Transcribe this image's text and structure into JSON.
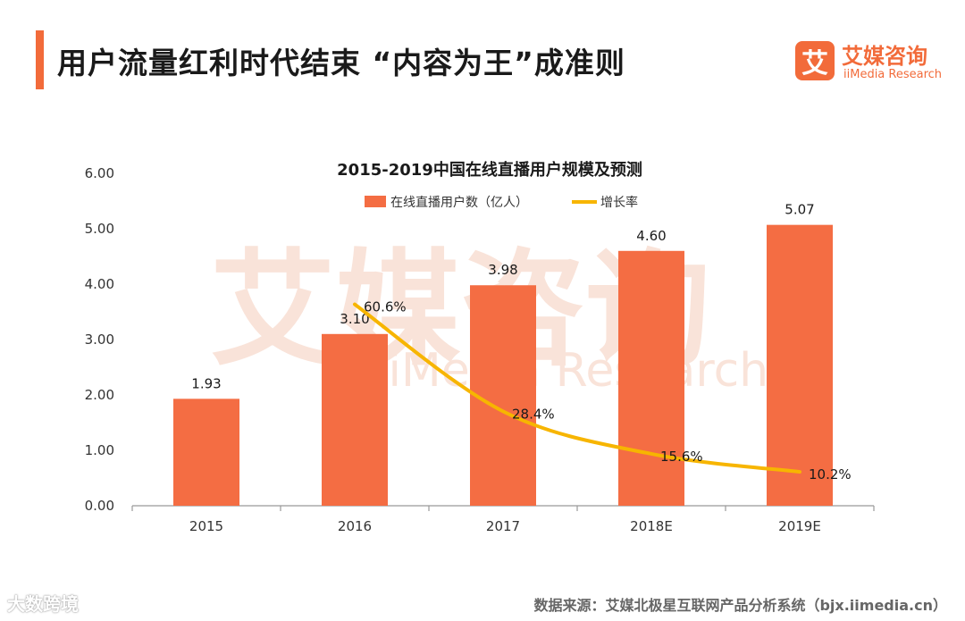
{
  "header": {
    "title": "用户流量红利时代结束 “内容为王”成准则"
  },
  "logo": {
    "mark": "艾",
    "name_cn": "艾媒咨询",
    "name_en": "iiMedia Research"
  },
  "footer": {
    "source": "数据来源：艾媒北极星互联网产品分析系统（bjx.iimedia.cn）",
    "corner_watermark": "大数跨境"
  },
  "colors": {
    "accent": "#f26b3a",
    "bar": "#f46d43",
    "line": "#f7b500",
    "text": "#1a1a1a"
  },
  "chart_data": {
    "type": "bar",
    "title": "2015-2019中国在线直播用户规模及预测",
    "categories": [
      "2015",
      "2016",
      "2017",
      "2018E",
      "2019E"
    ],
    "ylim": [
      0,
      6
    ],
    "yticks": [
      "0.00",
      "1.00",
      "2.00",
      "3.00",
      "4.00",
      "5.00",
      "6.00"
    ],
    "legend_position": "top-center",
    "series": [
      {
        "name": "在线直播用户数（亿人）",
        "type": "bar",
        "values": [
          1.93,
          3.1,
          3.98,
          4.6,
          5.07
        ],
        "labels": [
          "1.93",
          "3.10",
          "3.98",
          "4.60",
          "5.07"
        ]
      },
      {
        "name": "增长率",
        "type": "line",
        "values": [
          null,
          60.6,
          28.4,
          15.6,
          10.2
        ],
        "labels": [
          "",
          "60.6%",
          "28.4%",
          "15.6%",
          "10.2%"
        ],
        "secondary_axis_range": [
          0,
          100
        ]
      }
    ]
  }
}
